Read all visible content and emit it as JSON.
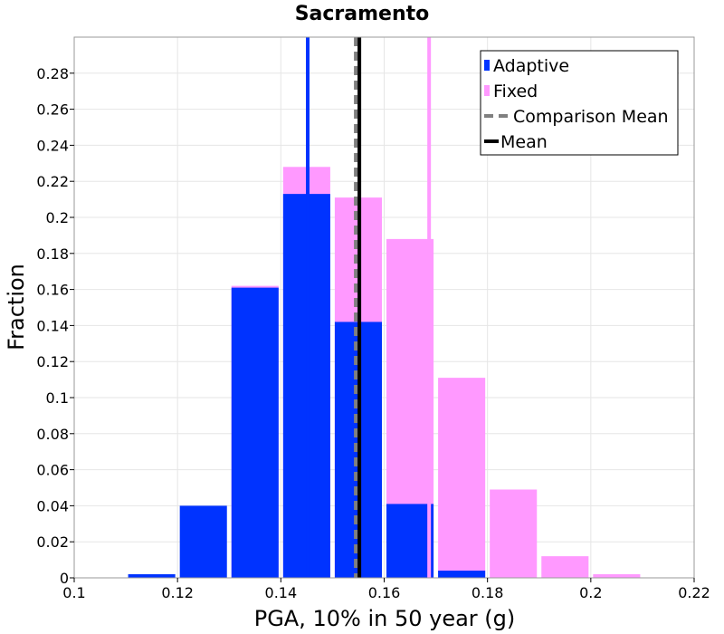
{
  "chart_data": {
    "type": "bar",
    "title": "Sacramento",
    "xlabel": "PGA, 10% in 50 year (g)",
    "ylabel": "Fraction",
    "xlim": [
      0.1,
      0.22
    ],
    "ylim": [
      0,
      0.3
    ],
    "x_ticks": [
      "0.1",
      "0.12",
      "0.14",
      "0.16",
      "0.18",
      "0.2",
      "0.22"
    ],
    "y_ticks": [
      "0",
      "0.02",
      "0.04",
      "0.06",
      "0.08",
      "0.1",
      "0.12",
      "0.14",
      "0.16",
      "0.18",
      "0.2",
      "0.22",
      "0.24",
      "0.26",
      "0.28"
    ],
    "bin_width": 0.01,
    "bin_centers": [
      0.115,
      0.125,
      0.135,
      0.145,
      0.155,
      0.165,
      0.175,
      0.185,
      0.195,
      0.205
    ],
    "series": [
      {
        "name": "Fixed",
        "color": "#ff99ff",
        "values": [
          0.0,
          0.0,
          0.162,
          0.228,
          0.211,
          0.188,
          0.111,
          0.049,
          0.012,
          0.002
        ]
      },
      {
        "name": "Adaptive",
        "color": "#0033ff",
        "values": [
          0.002,
          0.04,
          0.161,
          0.213,
          0.142,
          0.041,
          0.004,
          0.0,
          0.0,
          0.0
        ]
      }
    ],
    "vlines": [
      {
        "name": "Adaptive Mean",
        "x": 0.1452,
        "color": "#0033ff",
        "style": "solid"
      },
      {
        "name": "Fixed Mean",
        "x": 0.1687,
        "color": "#ff99ff",
        "style": "solid"
      },
      {
        "name": "Comparison Mean",
        "x": 0.1545,
        "color": "#808080",
        "style": "dashed"
      },
      {
        "name": "Mean",
        "x": 0.1552,
        "color": "#000000",
        "style": "solid"
      }
    ],
    "legend": {
      "placement": "top-right",
      "entries": [
        {
          "label": "Adaptive",
          "color": "#0033ff",
          "kind": "bar"
        },
        {
          "label": "Fixed",
          "color": "#ff99ff",
          "kind": "bar"
        },
        {
          "label": "Comparison Mean",
          "color": "#808080",
          "kind": "dashed-line"
        },
        {
          "label": "Mean",
          "color": "#000000",
          "kind": "line"
        }
      ]
    },
    "grid": true
  }
}
